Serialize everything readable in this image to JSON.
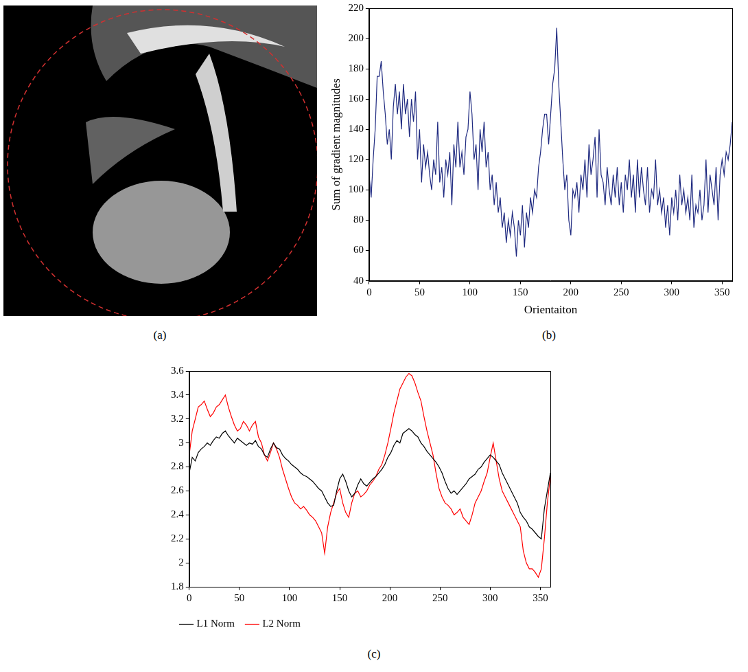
{
  "chart_data": [
    {
      "type": "image",
      "panel_label": "(a)"
    },
    {
      "type": "line",
      "panel_label": "(b)",
      "x_label": "Orientaiton",
      "y_label": "Sum of gradient magnitudes",
      "x": [
        0,
        2,
        4,
        6,
        8,
        10,
        12,
        14,
        16,
        18,
        20,
        22,
        24,
        26,
        28,
        30,
        32,
        34,
        36,
        38,
        40,
        42,
        44,
        46,
        48,
        50,
        52,
        54,
        56,
        58,
        60,
        62,
        64,
        66,
        68,
        70,
        72,
        74,
        76,
        78,
        80,
        82,
        84,
        86,
        88,
        90,
        92,
        94,
        96,
        98,
        100,
        102,
        104,
        106,
        108,
        110,
        112,
        114,
        116,
        118,
        120,
        122,
        124,
        126,
        128,
        130,
        132,
        134,
        136,
        138,
        140,
        142,
        144,
        146,
        148,
        150,
        152,
        154,
        156,
        158,
        160,
        162,
        164,
        166,
        168,
        170,
        172,
        174,
        176,
        178,
        180,
        182,
        184,
        186,
        188,
        190,
        192,
        194,
        196,
        198,
        200,
        202,
        204,
        206,
        208,
        210,
        212,
        214,
        216,
        218,
        220,
        222,
        224,
        226,
        228,
        230,
        232,
        234,
        236,
        238,
        240,
        242,
        244,
        246,
        248,
        250,
        252,
        254,
        256,
        258,
        260,
        262,
        264,
        266,
        268,
        270,
        272,
        274,
        276,
        278,
        280,
        282,
        284,
        286,
        288,
        290,
        292,
        294,
        296,
        298,
        300,
        302,
        304,
        306,
        308,
        310,
        312,
        314,
        316,
        318,
        320,
        322,
        324,
        326,
        328,
        330,
        332,
        334,
        336,
        338,
        340,
        342,
        344,
        346,
        348,
        350,
        352,
        354,
        356,
        358,
        360
      ],
      "series": [
        {
          "color": "#1f2a80",
          "values": [
            110,
            95,
            120,
            140,
            175,
            175,
            185,
            165,
            150,
            130,
            140,
            120,
            155,
            170,
            150,
            165,
            140,
            170,
            150,
            160,
            135,
            160,
            145,
            165,
            120,
            140,
            105,
            130,
            115,
            125,
            110,
            100,
            120,
            110,
            145,
            105,
            115,
            95,
            120,
            110,
            125,
            90,
            130,
            115,
            145,
            115,
            125,
            110,
            135,
            140,
            165,
            150,
            120,
            130,
            100,
            140,
            125,
            145,
            115,
            125,
            100,
            110,
            90,
            105,
            85,
            95,
            75,
            85,
            65,
            80,
            70,
            85,
            75,
            56,
            80,
            70,
            90,
            62,
            85,
            75,
            95,
            85,
            100,
            95,
            115,
            125,
            140,
            150,
            150,
            130,
            150,
            170,
            180,
            207,
            170,
            145,
            120,
            100,
            110,
            80,
            70,
            100,
            95,
            105,
            85,
            110,
            100,
            120,
            95,
            130,
            110,
            120,
            135,
            95,
            140,
            110,
            105,
            90,
            115,
            100,
            90,
            110,
            95,
            115,
            90,
            105,
            85,
            110,
            100,
            120,
            95,
            110,
            85,
            120,
            95,
            115,
            100,
            90,
            115,
            85,
            100,
            95,
            120,
            90,
            100,
            85,
            95,
            75,
            90,
            70,
            95,
            85,
            100,
            80,
            110,
            90,
            100,
            85,
            95,
            80,
            110,
            75,
            90,
            85,
            100,
            80,
            90,
            120,
            85,
            110,
            100,
            90,
            115,
            80,
            110,
            120,
            110,
            125,
            120,
            130,
            145
          ]
        }
      ],
      "xlim": [
        0,
        360
      ],
      "xticks": [
        0,
        50,
        100,
        150,
        200,
        250,
        300,
        350
      ],
      "ylim": [
        40,
        220
      ],
      "yticks": [
        40,
        60,
        80,
        100,
        120,
        140,
        160,
        180,
        200,
        220
      ],
      "grid": false
    },
    {
      "type": "line",
      "panel_label": "(c)",
      "x": [
        0,
        3,
        6,
        9,
        12,
        15,
        18,
        21,
        24,
        27,
        30,
        33,
        36,
        39,
        42,
        45,
        48,
        51,
        54,
        57,
        60,
        63,
        66,
        69,
        72,
        75,
        78,
        81,
        84,
        87,
        90,
        93,
        96,
        99,
        102,
        105,
        108,
        111,
        114,
        117,
        120,
        123,
        126,
        129,
        132,
        135,
        138,
        141,
        144,
        147,
        150,
        153,
        156,
        159,
        162,
        165,
        168,
        171,
        174,
        177,
        180,
        183,
        186,
        189,
        192,
        195,
        198,
        201,
        204,
        207,
        210,
        213,
        216,
        219,
        222,
        225,
        228,
        231,
        234,
        237,
        240,
        243,
        246,
        249,
        252,
        255,
        258,
        261,
        264,
        267,
        270,
        273,
        276,
        279,
        282,
        285,
        288,
        291,
        294,
        297,
        300,
        303,
        306,
        309,
        312,
        315,
        318,
        321,
        324,
        327,
        330,
        333,
        336,
        339,
        342,
        345,
        348,
        351,
        354,
        357,
        360
      ],
      "series": [
        {
          "name": "L1 Norm",
          "color": "#000000",
          "values": [
            2.75,
            2.88,
            2.85,
            2.92,
            2.95,
            2.97,
            3.0,
            2.98,
            3.02,
            3.05,
            3.04,
            3.08,
            3.1,
            3.06,
            3.03,
            3.0,
            3.04,
            3.02,
            3.0,
            2.98,
            3.0,
            2.99,
            3.02,
            2.97,
            2.95,
            2.9,
            2.88,
            2.95,
            3.0,
            2.96,
            2.95,
            2.9,
            2.87,
            2.85,
            2.82,
            2.8,
            2.78,
            2.75,
            2.73,
            2.72,
            2.7,
            2.68,
            2.65,
            2.62,
            2.6,
            2.55,
            2.5,
            2.47,
            2.48,
            2.6,
            2.7,
            2.74,
            2.68,
            2.6,
            2.55,
            2.58,
            2.65,
            2.7,
            2.66,
            2.64,
            2.67,
            2.7,
            2.72,
            2.75,
            2.78,
            2.82,
            2.88,
            2.92,
            2.98,
            3.02,
            3.0,
            3.08,
            3.1,
            3.12,
            3.1,
            3.07,
            3.05,
            3.0,
            2.97,
            2.93,
            2.9,
            2.87,
            2.84,
            2.8,
            2.75,
            2.68,
            2.62,
            2.58,
            2.6,
            2.57,
            2.6,
            2.63,
            2.66,
            2.7,
            2.72,
            2.74,
            2.78,
            2.8,
            2.84,
            2.87,
            2.9,
            2.88,
            2.85,
            2.82,
            2.75,
            2.7,
            2.65,
            2.6,
            2.55,
            2.5,
            2.42,
            2.38,
            2.35,
            2.3,
            2.28,
            2.25,
            2.22,
            2.2,
            2.45,
            2.6,
            2.75
          ]
        },
        {
          "name": "L2 Norm",
          "color": "#ff0000",
          "values": [
            2.9,
            3.1,
            3.2,
            3.3,
            3.32,
            3.35,
            3.28,
            3.22,
            3.25,
            3.3,
            3.32,
            3.36,
            3.4,
            3.3,
            3.22,
            3.15,
            3.1,
            3.12,
            3.18,
            3.15,
            3.1,
            3.15,
            3.18,
            3.05,
            3.0,
            2.9,
            2.85,
            2.92,
            3.0,
            2.95,
            2.88,
            2.78,
            2.7,
            2.62,
            2.55,
            2.5,
            2.48,
            2.45,
            2.47,
            2.44,
            2.4,
            2.38,
            2.35,
            2.3,
            2.25,
            2.08,
            2.3,
            2.42,
            2.5,
            2.58,
            2.62,
            2.5,
            2.42,
            2.38,
            2.5,
            2.58,
            2.6,
            2.55,
            2.57,
            2.6,
            2.65,
            2.68,
            2.72,
            2.78,
            2.82,
            2.9,
            3.0,
            3.12,
            3.25,
            3.35,
            3.45,
            3.5,
            3.55,
            3.58,
            3.56,
            3.5,
            3.42,
            3.35,
            3.22,
            3.1,
            3.0,
            2.9,
            2.75,
            2.62,
            2.55,
            2.5,
            2.48,
            2.45,
            2.4,
            2.42,
            2.45,
            2.38,
            2.35,
            2.32,
            2.4,
            2.5,
            2.55,
            2.6,
            2.68,
            2.75,
            2.88,
            3.0,
            2.85,
            2.7,
            2.6,
            2.55,
            2.5,
            2.45,
            2.4,
            2.35,
            2.3,
            2.1,
            2.0,
            1.95,
            1.95,
            1.92,
            1.88,
            1.95,
            2.2,
            2.5,
            2.72
          ]
        }
      ],
      "xlim": [
        0,
        360
      ],
      "xticks": [
        0,
        50,
        100,
        150,
        200,
        250,
        300,
        350
      ],
      "ylim": [
        1.8,
        3.6
      ],
      "yticks": [
        1.8,
        2,
        2.2,
        2.4,
        2.6,
        2.8,
        3,
        3.2,
        3.4,
        3.6
      ],
      "grid": false,
      "legend": "bottom"
    }
  ]
}
